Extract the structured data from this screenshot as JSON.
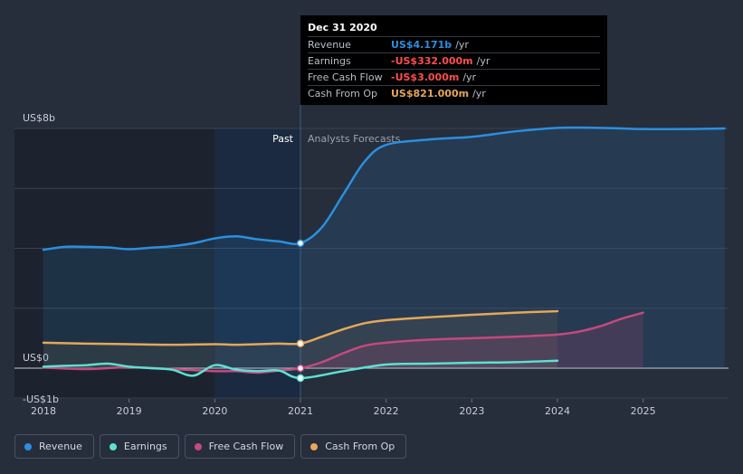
{
  "colors": {
    "revenue": "#2b8fdf",
    "earnings": "#5ee1d1",
    "free_cash_flow": "#c4497e",
    "cash_from_op": "#e5a75a",
    "earnings_value": "#ff4d4d",
    "revenue_value": "#2b8fdf",
    "cfo_value": "#e5a75a"
  },
  "tooltip": {
    "date": "Dec 31 2020",
    "rows": [
      {
        "label": "Revenue",
        "value": "US$4.171b",
        "unit": "/yr"
      },
      {
        "label": "Earnings",
        "value": "-US$332.000m",
        "unit": "/yr"
      },
      {
        "label": "Free Cash Flow",
        "value": "-US$3.000m",
        "unit": "/yr"
      },
      {
        "label": "Cash From Op",
        "value": "US$821.000m",
        "unit": "/yr"
      }
    ]
  },
  "labels": {
    "past": "Past",
    "forecast": "Analysts Forecasts"
  },
  "legend": [
    {
      "label": "Revenue",
      "key": "revenue"
    },
    {
      "label": "Earnings",
      "key": "earnings"
    },
    {
      "label": "Free Cash Flow",
      "key": "free_cash_flow"
    },
    {
      "label": "Cash From Op",
      "key": "cash_from_op"
    }
  ],
  "chart_data": {
    "type": "line",
    "title": "",
    "xlabel": "",
    "ylabel": "",
    "x_range": [
      2017.9,
      2025.95
    ],
    "ylim": [
      -1,
      8
    ],
    "y_ticks": [
      {
        "value": 8,
        "label": "US$8b"
      },
      {
        "value": 0,
        "label": "US$0"
      },
      {
        "value": -1,
        "label": "-US$1b"
      }
    ],
    "y_grid": [
      8,
      6,
      4,
      2,
      0,
      -1
    ],
    "x_ticks": [
      2018,
      2019,
      2020,
      2021,
      2022,
      2023,
      2024,
      2025
    ],
    "x_tick_labels": [
      "2018",
      "2019",
      "2020",
      "2021",
      "2022",
      "2023",
      "2024",
      "2025"
    ],
    "past_band_start": 2020.0,
    "past_divider": 2021.0,
    "series": [
      {
        "name": "Revenue",
        "key": "revenue",
        "x": [
          2018.0,
          2018.25,
          2018.5,
          2018.75,
          2019.0,
          2019.25,
          2019.5,
          2019.75,
          2020.0,
          2020.25,
          2020.5,
          2020.75,
          2021.0,
          2021.25,
          2021.5,
          2021.75,
          2022.0,
          2022.5,
          2023.0,
          2023.5,
          2024.0,
          2024.5,
          2025.0,
          2025.5,
          2025.95
        ],
        "values": [
          3.95,
          4.05,
          4.05,
          4.03,
          3.97,
          4.02,
          4.07,
          4.17,
          4.33,
          4.4,
          4.3,
          4.23,
          4.171,
          4.7,
          5.8,
          6.9,
          7.45,
          7.63,
          7.72,
          7.9,
          8.02,
          8.02,
          7.98,
          7.98,
          8.0
        ]
      },
      {
        "name": "Earnings",
        "key": "earnings",
        "x": [
          2018.0,
          2018.25,
          2018.5,
          2018.75,
          2019.0,
          2019.25,
          2019.5,
          2019.75,
          2020.0,
          2020.25,
          2020.5,
          2020.75,
          2021.0,
          2021.5,
          2022.0,
          2022.5,
          2023.0,
          2023.5,
          2024.0
        ],
        "values": [
          0.05,
          0.08,
          0.1,
          0.15,
          0.05,
          0.0,
          -0.05,
          -0.25,
          0.1,
          -0.05,
          -0.1,
          -0.08,
          -0.332,
          -0.1,
          0.12,
          0.15,
          0.18,
          0.2,
          0.25
        ]
      },
      {
        "name": "Free Cash Flow",
        "key": "free_cash_flow",
        "x": [
          2018.0,
          2018.5,
          2019.0,
          2019.5,
          2020.0,
          2020.25,
          2020.5,
          2020.75,
          2021.0,
          2021.25,
          2021.5,
          2021.75,
          2022.0,
          2022.5,
          2023.0,
          2023.5,
          2024.0,
          2024.25,
          2024.5,
          2024.75,
          2025.0
        ],
        "values": [
          0.02,
          -0.03,
          0.03,
          -0.03,
          -0.1,
          -0.1,
          -0.15,
          -0.08,
          -0.003,
          0.2,
          0.5,
          0.75,
          0.85,
          0.95,
          1.0,
          1.05,
          1.12,
          1.22,
          1.4,
          1.65,
          1.85
        ]
      },
      {
        "name": "Cash From Op",
        "key": "cash_from_op",
        "x": [
          2018.0,
          2018.5,
          2019.0,
          2019.5,
          2020.0,
          2020.25,
          2020.5,
          2020.75,
          2021.0,
          2021.25,
          2021.5,
          2021.75,
          2022.0,
          2022.5,
          2023.0,
          2023.5,
          2024.0
        ],
        "values": [
          0.85,
          0.82,
          0.8,
          0.78,
          0.8,
          0.78,
          0.8,
          0.82,
          0.821,
          1.05,
          1.3,
          1.5,
          1.6,
          1.7,
          1.78,
          1.85,
          1.9
        ]
      }
    ],
    "markers_at": 2021.0
  }
}
